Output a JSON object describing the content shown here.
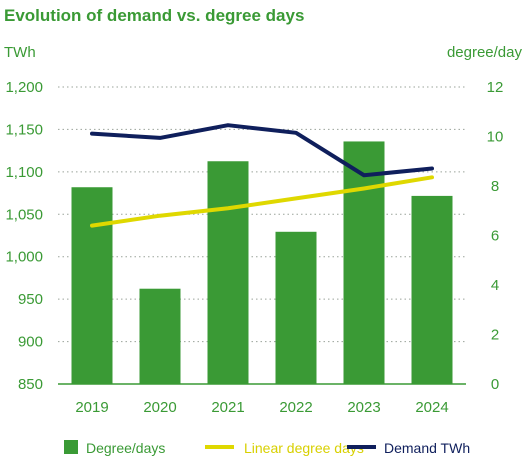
{
  "chart_data": {
    "type": "bar",
    "title": "Evolution of demand vs. degree days",
    "categories": [
      "2019",
      "2020",
      "2021",
      "2022",
      "2023",
      "2024"
    ],
    "y_left": {
      "label": "TWh",
      "range": [
        850,
        1200
      ],
      "ticks": [
        "850",
        "900",
        "950",
        "1,000",
        "1,050",
        "1,100",
        "1,150",
        "1,200"
      ],
      "tick_values": [
        850,
        900,
        950,
        1000,
        1050,
        1100,
        1150,
        1200
      ]
    },
    "y_right": {
      "label": "degree/day",
      "range": [
        0,
        12
      ],
      "ticks": [
        "0",
        "2",
        "4",
        "6",
        "8",
        "10",
        "12"
      ],
      "tick_values": [
        0,
        2,
        4,
        6,
        8,
        10,
        12
      ]
    },
    "grid": "dotted-horizontal",
    "legend_position": "bottom",
    "series": [
      {
        "name": "Degree/days",
        "kind": "bar",
        "axis": "right",
        "values": [
          7.95,
          3.85,
          9.0,
          6.15,
          9.8,
          7.6
        ]
      },
      {
        "name": "Linear degree days",
        "kind": "line",
        "axis": "right",
        "values": [
          6.4,
          6.8,
          7.1,
          7.5,
          7.9,
          8.35
        ]
      },
      {
        "name": "Demand TWh",
        "kind": "line",
        "axis": "left",
        "values": [
          1145,
          1140,
          1155,
          1146,
          1096,
          1104
        ]
      }
    ],
    "colors": {
      "bar": "#3a9a35",
      "trend": "#dfd800",
      "demand": "#0f1f5c",
      "axis_text_left": "#3a9a35",
      "axis_text_right": "#3a9a35",
      "grid": "#9aa39a",
      "title": "#3a9a35"
    }
  }
}
